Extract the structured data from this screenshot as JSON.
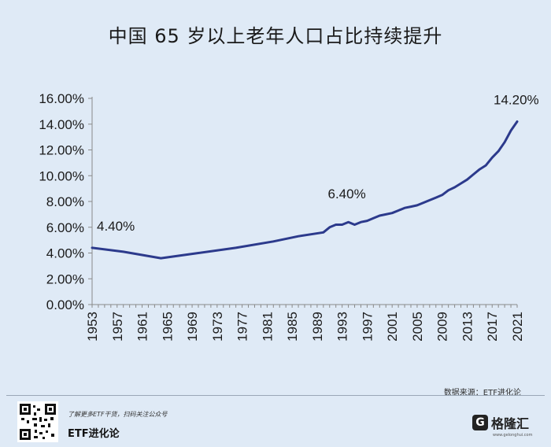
{
  "chart_data": {
    "type": "line",
    "title": "中国 65 岁以上老年人口占比持续提升",
    "y_ticks": [
      "0.00%",
      "2.00%",
      "4.00%",
      "6.00%",
      "8.00%",
      "10.00%",
      "12.00%",
      "14.00%",
      "16.00%"
    ],
    "x_ticks": [
      "1953",
      "1957",
      "1961",
      "1965",
      "1969",
      "1973",
      "1977",
      "1981",
      "1985",
      "1989",
      "1993",
      "1997",
      "2001",
      "2005",
      "2009",
      "2013",
      "2017",
      "2021"
    ],
    "ylim": [
      0,
      16
    ],
    "xlim": [
      1953,
      2021
    ],
    "series_color": "#2c3a8c",
    "points": [
      [
        1953,
        4.4
      ],
      [
        1958,
        4.1
      ],
      [
        1964,
        3.6
      ],
      [
        1970,
        4.0
      ],
      [
        1976,
        4.4
      ],
      [
        1982,
        4.9
      ],
      [
        1986,
        5.3
      ],
      [
        1990,
        5.6
      ],
      [
        1991,
        6.0
      ],
      [
        1992,
        6.2
      ],
      [
        1993,
        6.2
      ],
      [
        1994,
        6.4
      ],
      [
        1995,
        6.2
      ],
      [
        1996,
        6.4
      ],
      [
        1997,
        6.5
      ],
      [
        1998,
        6.7
      ],
      [
        1999,
        6.9
      ],
      [
        2000,
        7.0
      ],
      [
        2001,
        7.1
      ],
      [
        2002,
        7.3
      ],
      [
        2003,
        7.5
      ],
      [
        2004,
        7.6
      ],
      [
        2005,
        7.7
      ],
      [
        2006,
        7.9
      ],
      [
        2007,
        8.1
      ],
      [
        2008,
        8.3
      ],
      [
        2009,
        8.5
      ],
      [
        2010,
        8.87
      ],
      [
        2011,
        9.1
      ],
      [
        2012,
        9.4
      ],
      [
        2013,
        9.7
      ],
      [
        2014,
        10.1
      ],
      [
        2015,
        10.5
      ],
      [
        2016,
        10.8
      ],
      [
        2017,
        11.4
      ],
      [
        2018,
        11.9
      ],
      [
        2019,
        12.6
      ],
      [
        2020,
        13.5
      ],
      [
        2021,
        14.2
      ]
    ],
    "annotations": [
      {
        "x": 1953,
        "y": 4.4,
        "text": "4.40%"
      },
      {
        "x": 1994,
        "y": 6.4,
        "text": "6.40%"
      },
      {
        "x": 2021,
        "y": 14.2,
        "text": "14.20%"
      }
    ]
  },
  "source_text": "数据来源：ETF进化论",
  "footer": {
    "promo_text": "了解更多ETF干货，扫码关注公众号",
    "account_name": "ETF进化论",
    "brand_logo_letter": "G",
    "brand_name": "格隆汇",
    "brand_url": "www.gelonghui.com"
  }
}
